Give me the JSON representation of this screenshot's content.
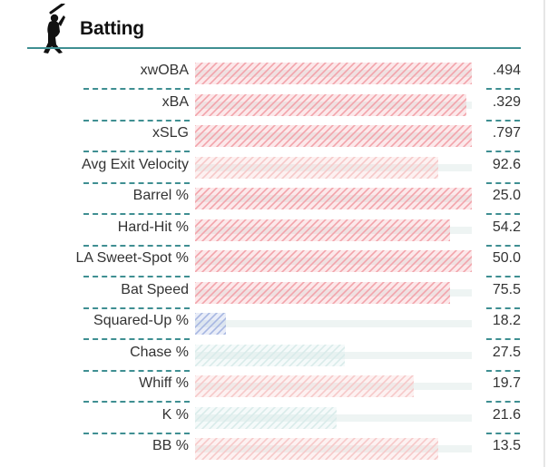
{
  "header": {
    "title": "Batting",
    "icon": "batter-icon"
  },
  "colors": {
    "accent": "#3f8f92",
    "hot": "#f2a4ab",
    "cool": "#a7b7e2",
    "neutral_cool": "#d9ebea",
    "neutral_warm": "#f6c9c9"
  },
  "metrics": [
    {
      "label": "xwOBA",
      "value": ".494",
      "percentile": 100,
      "tone": "hot"
    },
    {
      "label": "xBA",
      "value": ".329",
      "percentile": 98,
      "tone": "hot"
    },
    {
      "label": "xSLG",
      "value": ".797",
      "percentile": 100,
      "tone": "hot"
    },
    {
      "label": "Avg Exit Velocity",
      "value": "92.6",
      "percentile": 88,
      "tone": "warm"
    },
    {
      "label": "Barrel %",
      "value": "25.0",
      "percentile": 100,
      "tone": "hot"
    },
    {
      "label": "Hard-Hit %",
      "value": "54.2",
      "percentile": 92,
      "tone": "hot"
    },
    {
      "label": "LA Sweet-Spot %",
      "value": "50.0",
      "percentile": 100,
      "tone": "hot"
    },
    {
      "label": "Bat Speed",
      "value": "75.5",
      "percentile": 92,
      "tone": "hot"
    },
    {
      "label": "Squared-Up %",
      "value": "18.2",
      "percentile": 11,
      "tone": "cool"
    },
    {
      "label": "Chase %",
      "value": "27.5",
      "percentile": 54,
      "tone": "neutral_cool"
    },
    {
      "label": "Whiff %",
      "value": "19.7",
      "percentile": 79,
      "tone": "warm"
    },
    {
      "label": "K %",
      "value": "21.6",
      "percentile": 51,
      "tone": "neutral_cool"
    },
    {
      "label": "BB %",
      "value": "13.5",
      "percentile": 88,
      "tone": "warm"
    }
  ]
}
